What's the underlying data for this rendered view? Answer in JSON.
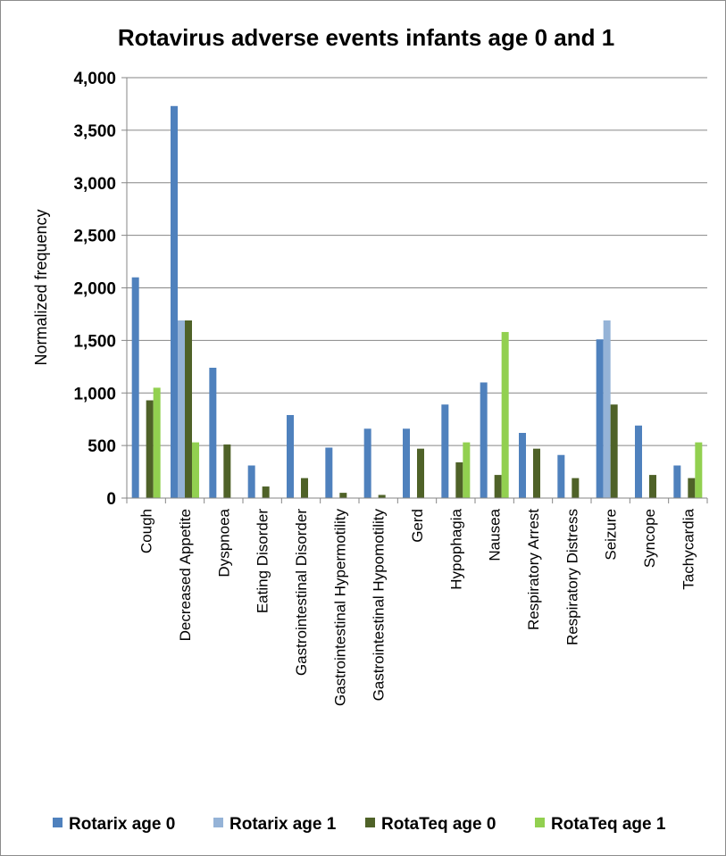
{
  "chart_data": {
    "type": "bar",
    "title": "Rotavirus adverse events infants age 0 and 1",
    "xlabel": "",
    "ylabel": "Normalized frequency",
    "ylim": [
      0,
      4000
    ],
    "yticks": [
      "0",
      "500",
      "1,000",
      "1,500",
      "2,000",
      "2,500",
      "3,000",
      "3,500",
      "4,000"
    ],
    "grid": true,
    "legend_position": "bottom",
    "categories": [
      "Cough",
      "Decreased Appetite",
      "Dyspnoea",
      "Eating Disorder",
      "Gastrointestinal Disorder",
      "Gastrointestinal Hypermotility",
      "Gastrointestinal Hypomotility",
      "Gerd",
      "Hypophagia",
      "Nausea",
      "Respiratory Arrest",
      "Respiratory Distress",
      "Seizure",
      "Syncope",
      "Tachycardia"
    ],
    "series": [
      {
        "name": "Rotarix age 0",
        "color": "#4f81bd",
        "values": [
          2100,
          3730,
          1240,
          310,
          790,
          480,
          660,
          660,
          890,
          1100,
          620,
          410,
          1510,
          690,
          310
        ]
      },
      {
        "name": "Rotarix age 1",
        "color": "#95b3d7",
        "values": [
          0,
          1690,
          0,
          0,
          0,
          0,
          0,
          0,
          0,
          0,
          0,
          0,
          1690,
          0,
          0
        ]
      },
      {
        "name": "RotaTeq age 0",
        "color": "#4f6228",
        "values": [
          930,
          1690,
          510,
          110,
          190,
          50,
          30,
          470,
          340,
          220,
          470,
          190,
          890,
          220,
          190
        ]
      },
      {
        "name": "RotaTeq age 1",
        "color": "#92d050",
        "values": [
          1050,
          530,
          0,
          0,
          0,
          0,
          0,
          0,
          530,
          1580,
          0,
          0,
          0,
          0,
          530
        ]
      }
    ]
  }
}
